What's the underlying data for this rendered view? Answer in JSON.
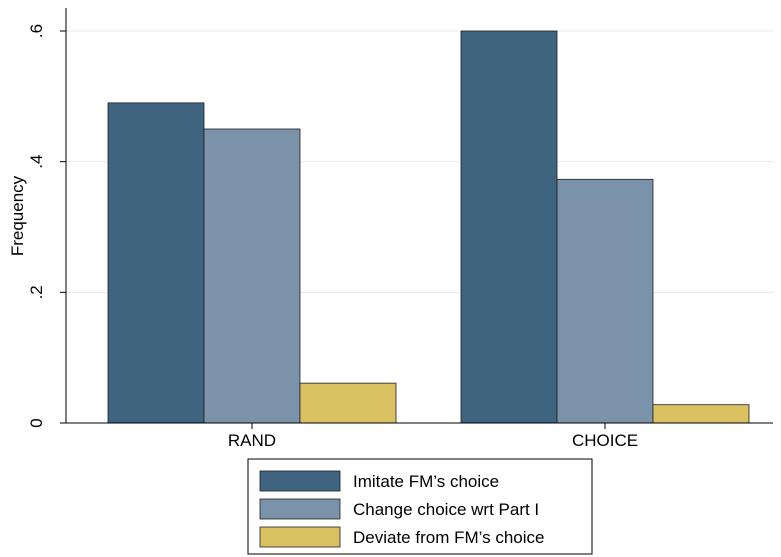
{
  "chart_data": {
    "type": "bar",
    "categories": [
      "RAND",
      "CHOICE"
    ],
    "series": [
      {
        "name": "Imitate FM’s choice",
        "values": [
          0.49,
          0.6
        ],
        "color": "#3e6480"
      },
      {
        "name": "Change choice wrt Part I",
        "values": [
          0.45,
          0.373
        ],
        "color": "#7b93aa"
      },
      {
        "name": "Deviate from FM’s choice",
        "values": [
          0.061,
          0.028
        ],
        "color": "#d9c162"
      }
    ],
    "ylabel": "Frequency",
    "xlabel": "",
    "ylim": [
      0,
      0.6
    ],
    "yticks": [
      0,
      0.2,
      0.4,
      0.6
    ],
    "ytick_labels": [
      "0",
      ".2",
      ".4",
      ".6"
    ],
    "grid": true,
    "legend_position": "bottom-center",
    "colors": {
      "grid": "#e8eaed",
      "axis": "#000000",
      "bar_edge": "#1e1e1e"
    }
  }
}
